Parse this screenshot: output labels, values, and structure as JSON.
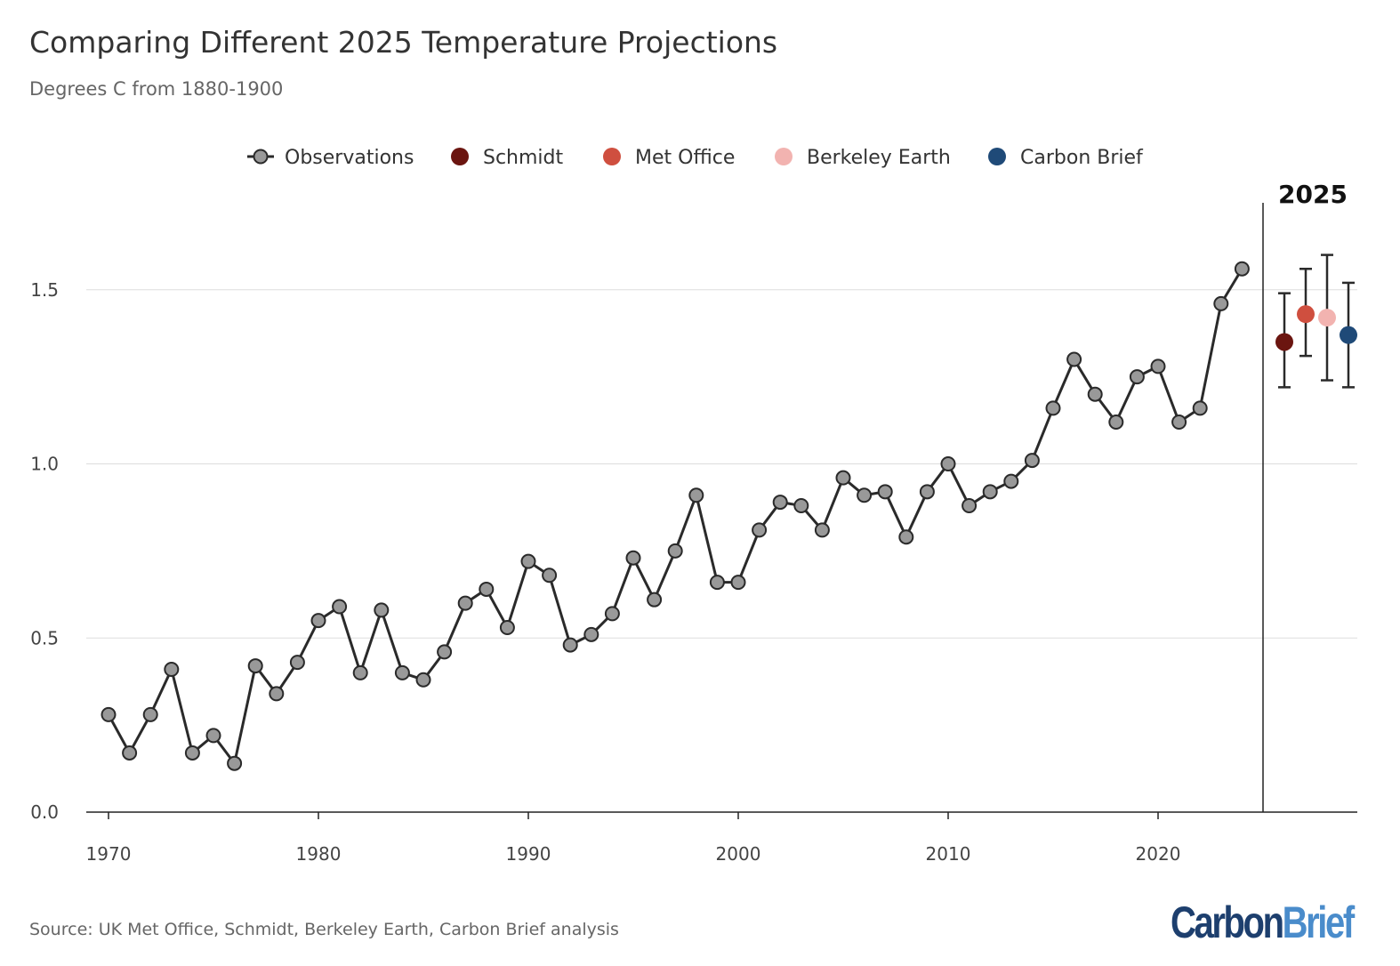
{
  "title": "Comparing Different 2025 Temperature Projections",
  "subtitle": "Degrees C from 1880-1900",
  "source": "Source: UK Met Office, Schmidt, Berkeley Earth, Carbon Brief analysis",
  "logo": {
    "part1": "Carbon",
    "part2": "Brief"
  },
  "chart_data": {
    "type": "line",
    "title": "Comparing Different 2025 Temperature Projections",
    "ylabel": "Degrees C from 1880-1900",
    "ylim": [
      0,
      1.75
    ],
    "xlim": [
      1969,
      2025
    ],
    "yticks": [
      "0.0",
      "0.5",
      "1.0",
      "1.5"
    ],
    "yticks_values": [
      0,
      0.5,
      1.0,
      1.5
    ],
    "xticks": [
      "1970",
      "1980",
      "1990",
      "2000",
      "2010",
      "2020"
    ],
    "xticks_values": [
      1970,
      1980,
      1990,
      2000,
      2010,
      2020
    ],
    "grid": "horizontal",
    "legend": "top",
    "observations": {
      "name": "Observations",
      "color": "#999999",
      "x": [
        1970,
        1971,
        1972,
        1973,
        1974,
        1975,
        1976,
        1977,
        1978,
        1979,
        1980,
        1981,
        1982,
        1983,
        1984,
        1985,
        1986,
        1987,
        1988,
        1989,
        1990,
        1991,
        1992,
        1993,
        1994,
        1995,
        1996,
        1997,
        1998,
        1999,
        2000,
        2001,
        2002,
        2003,
        2004,
        2005,
        2006,
        2007,
        2008,
        2009,
        2010,
        2011,
        2012,
        2013,
        2014,
        2015,
        2016,
        2017,
        2018,
        2019,
        2020,
        2021,
        2022,
        2023,
        2024
      ],
      "y": [
        0.28,
        0.17,
        0.28,
        0.41,
        0.17,
        0.22,
        0.14,
        0.42,
        0.34,
        0.43,
        0.55,
        0.59,
        0.4,
        0.58,
        0.4,
        0.38,
        0.46,
        0.6,
        0.64,
        0.53,
        0.72,
        0.68,
        0.48,
        0.51,
        0.57,
        0.73,
        0.61,
        0.75,
        0.91,
        0.66,
        0.66,
        0.81,
        0.89,
        0.88,
        0.81,
        0.96,
        0.91,
        0.92,
        0.79,
        0.92,
        1.0,
        0.88,
        0.92,
        0.95,
        1.01,
        1.16,
        1.3,
        1.2,
        1.12,
        1.25,
        1.28,
        1.12,
        1.16,
        1.46,
        1.56
      ]
    },
    "projection_label": "2025",
    "projections": [
      {
        "name": "Schmidt",
        "color": "#6b1510",
        "value": 1.35,
        "low": 1.22,
        "high": 1.49
      },
      {
        "name": "Met Office",
        "color": "#cf4f3f",
        "value": 1.43,
        "low": 1.31,
        "high": 1.56
      },
      {
        "name": "Berkeley Earth",
        "color": "#f2b3b0",
        "value": 1.42,
        "low": 1.24,
        "high": 1.6
      },
      {
        "name": "Carbon Brief",
        "color": "#1f4a78",
        "value": 1.37,
        "low": 1.22,
        "high": 1.52
      }
    ]
  }
}
